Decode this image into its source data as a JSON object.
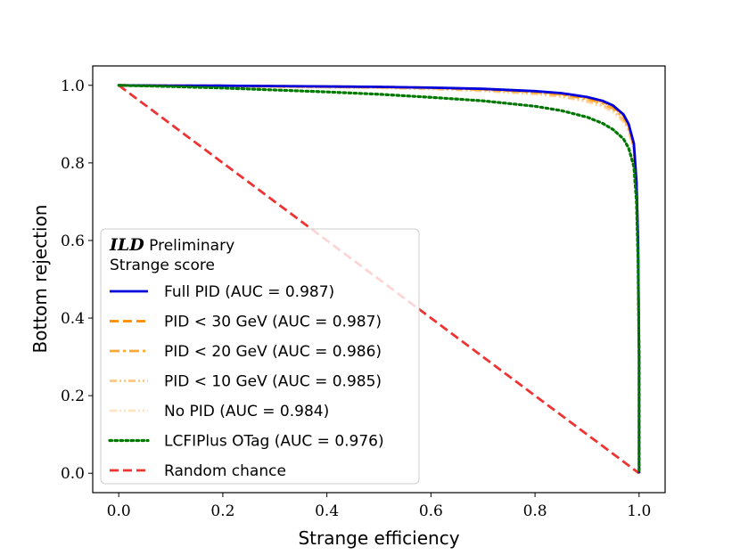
{
  "chart_data": {
    "type": "line",
    "title": "",
    "xlabel": "Strange efficiency",
    "ylabel": "Bottom rejection",
    "xlim": [
      -0.05,
      1.05
    ],
    "ylim": [
      -0.05,
      1.05
    ],
    "xticks": [
      0.0,
      0.2,
      0.4,
      0.6,
      0.8,
      1.0
    ],
    "xtick_labels": [
      "0.0",
      "0.2",
      "0.4",
      "0.6",
      "0.8",
      "1.0"
    ],
    "yticks": [
      0.0,
      0.2,
      0.4,
      0.6,
      0.8,
      1.0
    ],
    "ytick_labels": [
      "0.0",
      "0.2",
      "0.4",
      "0.6",
      "0.8",
      "1.0"
    ],
    "grid": false,
    "legend": {
      "placement": "lower-left",
      "title_bold": "ILD",
      "title_rest": " Preliminary",
      "subtitle": "Strange score"
    },
    "series": [
      {
        "name": "Full PID (AUC = 0.987)",
        "color": "#0000dd",
        "style": "solid",
        "x": [
          0.0,
          0.1,
          0.2,
          0.3,
          0.4,
          0.5,
          0.6,
          0.7,
          0.8,
          0.85,
          0.9,
          0.93,
          0.95,
          0.97,
          0.98,
          0.99,
          0.995,
          0.998,
          1.0,
          1.0
        ],
        "y": [
          1.0,
          0.999,
          0.999,
          0.998,
          0.997,
          0.996,
          0.994,
          0.991,
          0.985,
          0.98,
          0.97,
          0.96,
          0.948,
          0.925,
          0.9,
          0.85,
          0.75,
          0.6,
          0.3,
          0.0
        ]
      },
      {
        "name": "PID < 30 GeV (AUC = 0.987)",
        "color": "#ff8c00",
        "style": "dashed",
        "x": [
          0.0,
          0.1,
          0.2,
          0.3,
          0.4,
          0.5,
          0.6,
          0.7,
          0.8,
          0.85,
          0.9,
          0.93,
          0.95,
          0.97,
          0.98,
          0.99,
          0.995,
          0.998,
          1.0,
          1.0
        ],
        "y": [
          1.0,
          0.999,
          0.999,
          0.998,
          0.997,
          0.996,
          0.994,
          0.99,
          0.984,
          0.978,
          0.968,
          0.958,
          0.945,
          0.922,
          0.897,
          0.847,
          0.745,
          0.595,
          0.3,
          0.0
        ]
      },
      {
        "name": "PID < 20 GeV (AUC = 0.986)",
        "color": "#ffa733",
        "style": "dashdot",
        "x": [
          0.0,
          0.1,
          0.2,
          0.3,
          0.4,
          0.5,
          0.6,
          0.7,
          0.8,
          0.85,
          0.9,
          0.93,
          0.95,
          0.97,
          0.98,
          0.99,
          0.995,
          0.998,
          1.0,
          1.0
        ],
        "y": [
          1.0,
          0.999,
          0.998,
          0.997,
          0.996,
          0.995,
          0.993,
          0.989,
          0.982,
          0.976,
          0.965,
          0.954,
          0.94,
          0.917,
          0.892,
          0.842,
          0.74,
          0.59,
          0.3,
          0.0
        ]
      },
      {
        "name": "PID < 10 GeV (AUC = 0.985)",
        "color": "#ffc680",
        "style": "dashdotdot",
        "x": [
          0.0,
          0.1,
          0.2,
          0.3,
          0.4,
          0.5,
          0.6,
          0.7,
          0.8,
          0.85,
          0.9,
          0.93,
          0.95,
          0.97,
          0.98,
          0.99,
          0.995,
          0.998,
          1.0,
          1.0
        ],
        "y": [
          1.0,
          0.999,
          0.998,
          0.997,
          0.995,
          0.994,
          0.991,
          0.987,
          0.979,
          0.972,
          0.96,
          0.949,
          0.935,
          0.91,
          0.885,
          0.835,
          0.735,
          0.585,
          0.3,
          0.0
        ]
      },
      {
        "name": "No PID (AUC = 0.984)",
        "color": "#ffe2c0",
        "style": "dashdotdot",
        "x": [
          0.0,
          0.1,
          0.2,
          0.3,
          0.4,
          0.5,
          0.6,
          0.7,
          0.8,
          0.85,
          0.9,
          0.93,
          0.95,
          0.97,
          0.98,
          0.99,
          0.995,
          0.998,
          1.0,
          1.0
        ],
        "y": [
          1.0,
          0.999,
          0.998,
          0.996,
          0.995,
          0.993,
          0.99,
          0.985,
          0.977,
          0.97,
          0.957,
          0.945,
          0.93,
          0.905,
          0.88,
          0.83,
          0.73,
          0.58,
          0.3,
          0.0
        ]
      },
      {
        "name": "LCFIPlus OTag (AUC = 0.976)",
        "color": "#007700",
        "style": "dotted",
        "x": [
          0.0,
          0.1,
          0.2,
          0.3,
          0.4,
          0.5,
          0.6,
          0.7,
          0.8,
          0.85,
          0.9,
          0.93,
          0.95,
          0.97,
          0.98,
          0.99,
          0.995,
          0.998,
          1.0,
          1.0
        ],
        "y": [
          1.0,
          0.997,
          0.993,
          0.988,
          0.983,
          0.977,
          0.969,
          0.96,
          0.946,
          0.935,
          0.918,
          0.902,
          0.886,
          0.862,
          0.838,
          0.79,
          0.7,
          0.55,
          0.3,
          0.0
        ]
      },
      {
        "name": "Random chance",
        "color": "#ee3333",
        "style": "dashed",
        "x": [
          0.0,
          1.0
        ],
        "y": [
          1.0,
          0.0
        ]
      }
    ]
  }
}
